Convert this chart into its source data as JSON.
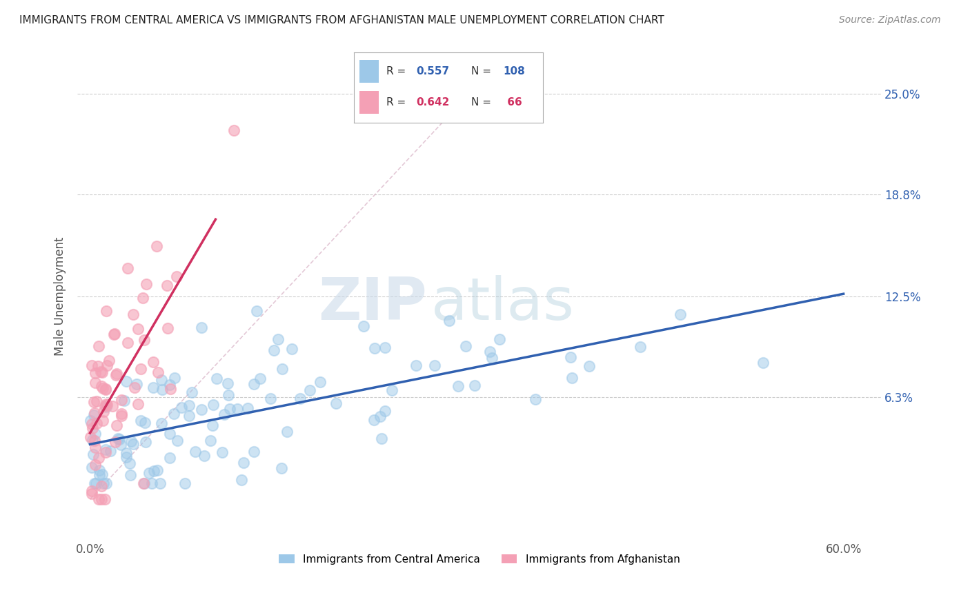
{
  "title": "IMMIGRANTS FROM CENTRAL AMERICA VS IMMIGRANTS FROM AFGHANISTAN MALE UNEMPLOYMENT CORRELATION CHART",
  "source": "Source: ZipAtlas.com",
  "xlabel_ticks": [
    "0.0%",
    "",
    "",
    "",
    "",
    "",
    "60.0%"
  ],
  "xlabel_values": [
    0.0,
    0.1,
    0.2,
    0.3,
    0.4,
    0.5,
    0.6
  ],
  "ylabel": "Male Unemployment",
  "ylabel_ticks": [
    "6.3%",
    "12.5%",
    "18.8%",
    "25.0%"
  ],
  "ylabel_values": [
    0.063,
    0.125,
    0.188,
    0.25
  ],
  "xlim": [
    -0.01,
    0.63
  ],
  "ylim": [
    -0.025,
    0.275
  ],
  "watermark_zip": "ZIP",
  "watermark_atlas": "atlas",
  "legend_series": [
    {
      "name": "Immigrants from Central America",
      "color": "#9DC8E8"
    },
    {
      "name": "Immigrants from Afghanistan",
      "color": "#F4A0B5"
    }
  ],
  "blue_R": 0.557,
  "blue_N": 108,
  "pink_R": 0.642,
  "pink_N": 66,
  "background_color": "#ffffff",
  "grid_color": "#cccccc",
  "title_color": "#222222",
  "axis_label_color": "#555555",
  "blue_dot_color": "#9DC8E8",
  "blue_line_color": "#3060B0",
  "pink_dot_color": "#F4A0B5",
  "pink_line_color": "#D03060",
  "ref_line_color": "#DDBBCC",
  "seed": 7
}
